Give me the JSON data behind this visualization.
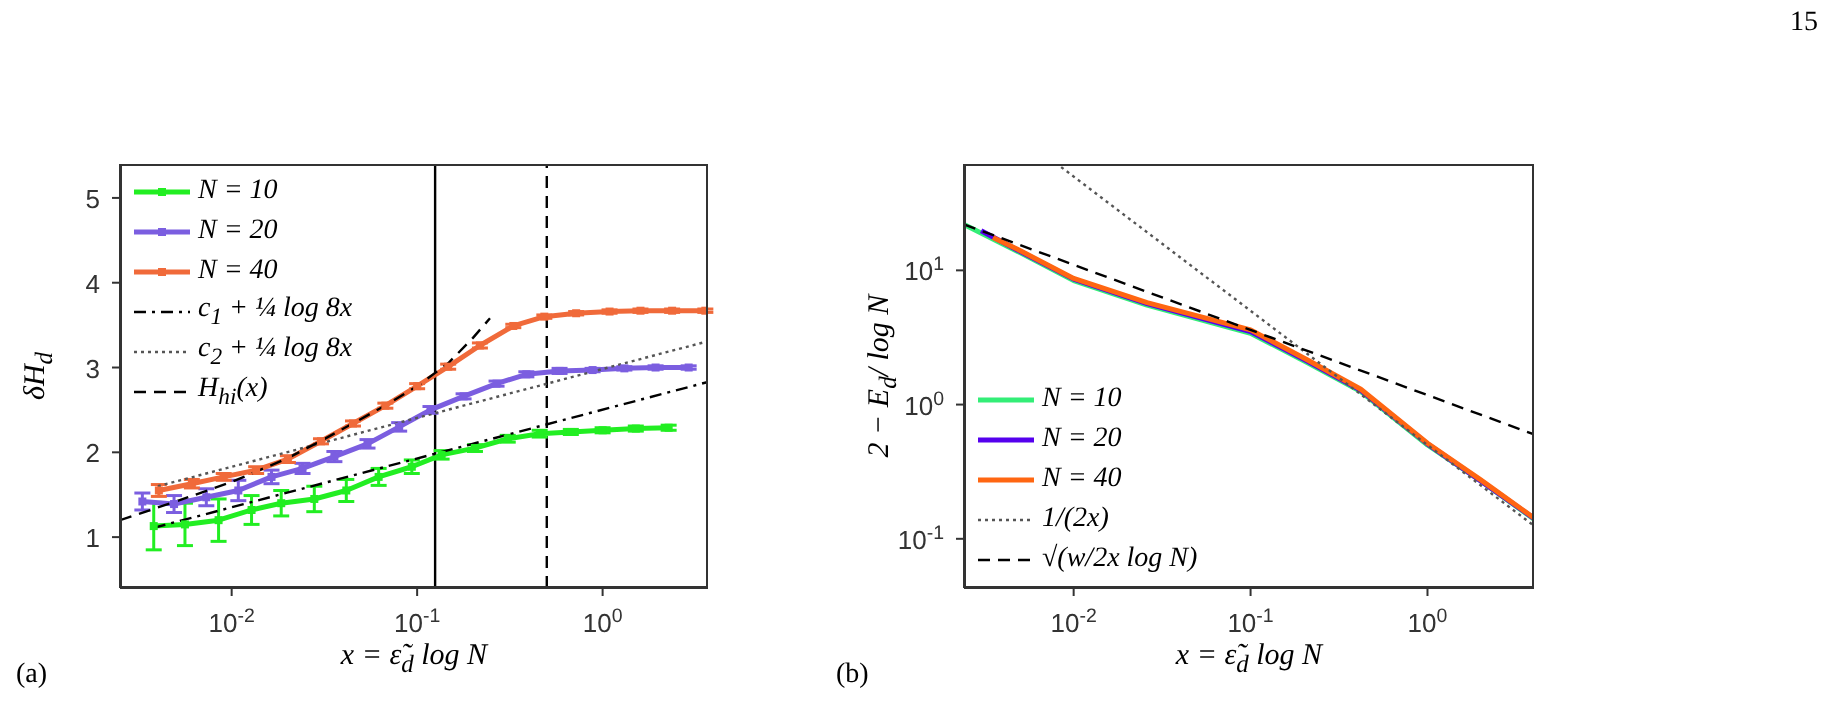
{
  "chart_data": [
    {
      "type": "line",
      "xlabel": "x = ε̃$_{d}$ log N",
      "ylabel": "δH$_{d}$",
      "log": "x",
      "xlim": [
        0.0025,
        3.7
      ],
      "ylim": [
        0.4,
        5.4
      ],
      "xticks": [
        {
          "value": 0.01,
          "label": "10$^{-2}$"
        },
        {
          "value": 0.1,
          "label": "10$^{-1}$"
        },
        {
          "value": 1,
          "label": "10$^{0}$"
        }
      ],
      "yticks": [
        1,
        2,
        3,
        4,
        5
      ],
      "legend": "top left",
      "annotations": [
        "(a)",
        "15"
      ],
      "ref_lines": [
        {
          "axis": "x",
          "value": 0.125,
          "color": "#000000",
          "line_style": "solid"
        },
        {
          "axis": "x",
          "value": 0.5,
          "color": "#000000",
          "line_style": "dashed"
        }
      ],
      "series": [
        {
          "name": "N = 10",
          "color": "#22ee22",
          "marker": "square",
          "line_style": "solid",
          "x": [
            0.0038,
            0.0056,
            0.0085,
            0.0128,
            0.0185,
            0.0279,
            0.0415,
            0.062,
            0.0936,
            0.1355,
            0.205,
            0.308,
            0.458,
            0.674,
            1.0,
            1.51,
            2.27
          ],
          "values": [
            1.13,
            1.15,
            1.2,
            1.32,
            1.4,
            1.45,
            1.55,
            1.71,
            1.83,
            1.97,
            2.05,
            2.16,
            2.22,
            2.24,
            2.26,
            2.28,
            2.29
          ],
          "errors": [
            0.28,
            0.25,
            0.25,
            0.17,
            0.15,
            0.15,
            0.13,
            0.1,
            0.08,
            0.05,
            0.04,
            0.04,
            0.04,
            0.03,
            0.03,
            0.03,
            0.03
          ]
        },
        {
          "name": "N = 20",
          "color": "#7b5ee0",
          "marker": "square",
          "line_style": "solid",
          "x": [
            0.0033,
            0.00489,
            0.0073,
            0.01086,
            0.0164,
            0.0241,
            0.0358,
            0.054,
            0.08,
            0.118,
            0.178,
            0.268,
            0.388,
            0.586,
            0.883,
            1.31,
            1.93,
            2.91
          ],
          "values": [
            1.42,
            1.39,
            1.47,
            1.55,
            1.71,
            1.81,
            1.95,
            2.1,
            2.3,
            2.5,
            2.66,
            2.81,
            2.92,
            2.96,
            2.97,
            2.99,
            3.0,
            3.0
          ],
          "errors": [
            0.1,
            0.1,
            0.1,
            0.12,
            0.08,
            0.06,
            0.06,
            0.05,
            0.05,
            0.04,
            0.03,
            0.03,
            0.03,
            0.03,
            0.02,
            0.02,
            0.02,
            0.02
          ]
        },
        {
          "name": "N = 40",
          "color": "#f06a3a",
          "marker": "square",
          "line_style": "solid",
          "x": [
            0.00405,
            0.0061,
            0.00906,
            0.01355,
            0.0201,
            0.0303,
            0.0451,
            0.0674,
            0.1,
            0.147,
            0.218,
            0.33,
            0.485,
            0.72,
            1.09,
            1.6,
            2.37,
            3.58
          ],
          "values": [
            1.55,
            1.63,
            1.71,
            1.79,
            1.92,
            2.13,
            2.34,
            2.55,
            2.78,
            3.01,
            3.26,
            3.49,
            3.6,
            3.64,
            3.66,
            3.67,
            3.67,
            3.67
          ],
          "errors": [
            0.07,
            0.05,
            0.04,
            0.04,
            0.04,
            0.03,
            0.03,
            0.03,
            0.03,
            0.03,
            0.03,
            0.02,
            0.02,
            0.02,
            0.02,
            0.02,
            0.02,
            0.02
          ]
        },
        {
          "name": "c$_{1}$ + ¼ log 8x",
          "color": "#000000",
          "marker": "none",
          "line_style": "dashdot",
          "x": [
            0.0038,
            3.7
          ],
          "values": [
            1.11,
            2.83
          ]
        },
        {
          "name": "c$_{2}$ + ¼ log 8x",
          "color": "#555555",
          "marker": "none",
          "line_style": "dotted",
          "x": [
            0.004,
            3.7
          ],
          "values": [
            1.6,
            3.31
          ]
        },
        {
          "name": "H$_{hi}$(x)",
          "color": "#000000",
          "marker": "none",
          "line_style": "dashed",
          "x": [
            0.0025,
            0.005,
            0.01,
            0.02,
            0.03,
            0.045,
            0.067,
            0.1,
            0.147,
            0.2,
            0.247
          ],
          "values": [
            1.2,
            1.42,
            1.65,
            1.93,
            2.13,
            2.34,
            2.55,
            2.78,
            3.05,
            3.35,
            3.58
          ]
        }
      ]
    },
    {
      "type": "line",
      "xlabel": "x = ε̃$_{d}$ log N",
      "ylabel": "2 − E$_{d}$/ log N",
      "log": "xy",
      "xlim": [
        0.0024,
        4
      ],
      "ylim": [
        0.043,
        62
      ],
      "xticks": [
        {
          "value": 0.01,
          "label": "10$^{-2}$"
        },
        {
          "value": 0.1,
          "label": "10$^{-1}$"
        },
        {
          "value": 1,
          "label": "10$^{0}$"
        }
      ],
      "yticks": [
        {
          "value": 0.1,
          "label": "10$^{-1}$"
        },
        {
          "value": 1,
          "label": "10$^{0}$"
        },
        {
          "value": 10,
          "label": "10$^{1}$"
        }
      ],
      "legend": "bottom left",
      "annotations": [
        "(b)"
      ],
      "series": [
        {
          "name": "N = 10",
          "color": "#33ee77",
          "marker": "none",
          "line_style": "solid",
          "x": [
            0.0024,
            0.005,
            0.01,
            0.026,
            0.1,
            0.21,
            0.42,
            1,
            2,
            4
          ],
          "values": [
            22,
            13.5,
            8.4,
            5.5,
            3.4,
            2.05,
            1.25,
            0.5,
            0.27,
            0.14
          ]
        },
        {
          "name": "N = 20",
          "color": "#5500ee",
          "marker": "none",
          "line_style": "solid",
          "x": [
            0.003,
            0.005,
            0.01,
            0.026,
            0.1,
            0.21,
            0.42,
            1,
            2,
            4
          ],
          "values": [
            19.7,
            13.8,
            8.6,
            5.65,
            3.5,
            2.1,
            1.28,
            0.51,
            0.27,
            0.142
          ]
        },
        {
          "name": "N = 40",
          "color": "#ff6611",
          "marker": "none",
          "line_style": "solid",
          "x": [
            0.0035,
            0.005,
            0.01,
            0.026,
            0.1,
            0.21,
            0.42,
            1,
            2,
            4
          ],
          "values": [
            17.6,
            14,
            8.7,
            5.75,
            3.6,
            2.15,
            1.3,
            0.515,
            0.275,
            0.143
          ]
        },
        {
          "name": "1/(2x)",
          "color": "#555555",
          "marker": "none",
          "line_style": "dotted",
          "x": [
            0.0085,
            4
          ],
          "values": [
            58.8,
            0.125
          ]
        },
        {
          "name": "√(w/2x log N)",
          "color": "#000000",
          "marker": "none",
          "line_style": "dashed",
          "x": [
            0.0024,
            4
          ],
          "values": [
            22,
            0.6
          ]
        }
      ]
    }
  ]
}
